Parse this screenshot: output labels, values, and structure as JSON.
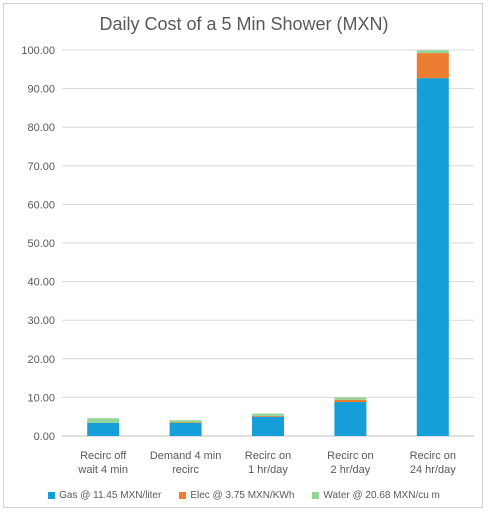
{
  "chart_data": {
    "type": "bar",
    "stacked": true,
    "title": "Daily Cost of a 5 Min Shower (MXN)",
    "categories": [
      [
        "Recirc off",
        "wait 4 min"
      ],
      [
        "Demand 4 min",
        "recirc"
      ],
      [
        "Recirc on",
        "1 hr/day"
      ],
      [
        "Recirc on",
        "2 hr/day"
      ],
      [
        "Recirc on",
        "24 hr/day"
      ]
    ],
    "series": [
      {
        "name": "Gas @ 11.45 MXN/liter",
        "color": "#159ed8",
        "values": [
          3.4,
          3.4,
          5.0,
          8.8,
          92.7
        ]
      },
      {
        "name": "Elec @ 3.75 MXN/KWh",
        "color": "#ed7d31",
        "values": [
          0.0,
          0.1,
          0.2,
          0.6,
          6.5
        ]
      },
      {
        "name": "Water @ 20.68 MXN/cu m",
        "color": "#92d596",
        "values": [
          1.2,
          0.6,
          0.6,
          0.6,
          0.7
        ]
      }
    ],
    "ylim": [
      0,
      100
    ],
    "yticks": [
      "0.00",
      "10.00",
      "20.00",
      "30.00",
      "40.00",
      "50.00",
      "60.00",
      "70.00",
      "80.00",
      "90.00",
      "100.00"
    ],
    "grid": true,
    "legend_position": "bottom"
  }
}
